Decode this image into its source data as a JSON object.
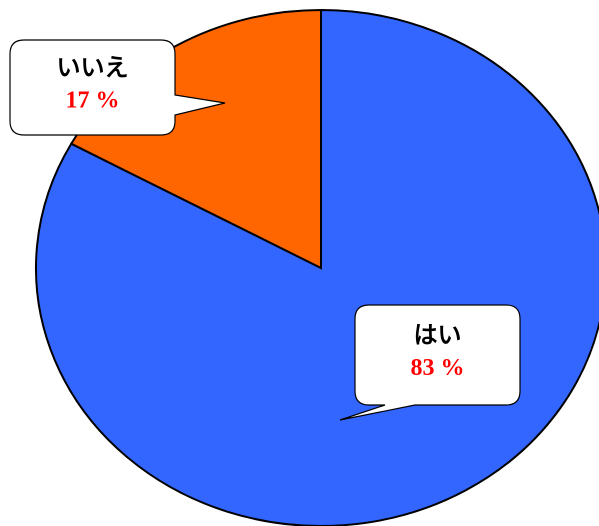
{
  "chart_data": {
    "type": "pie",
    "categories": [
      "はい",
      "いいえ"
    ],
    "values": [
      83,
      17
    ],
    "value_labels": [
      "83 %",
      "17 %"
    ],
    "colors": [
      "#3366ff",
      "#ff6600"
    ]
  }
}
